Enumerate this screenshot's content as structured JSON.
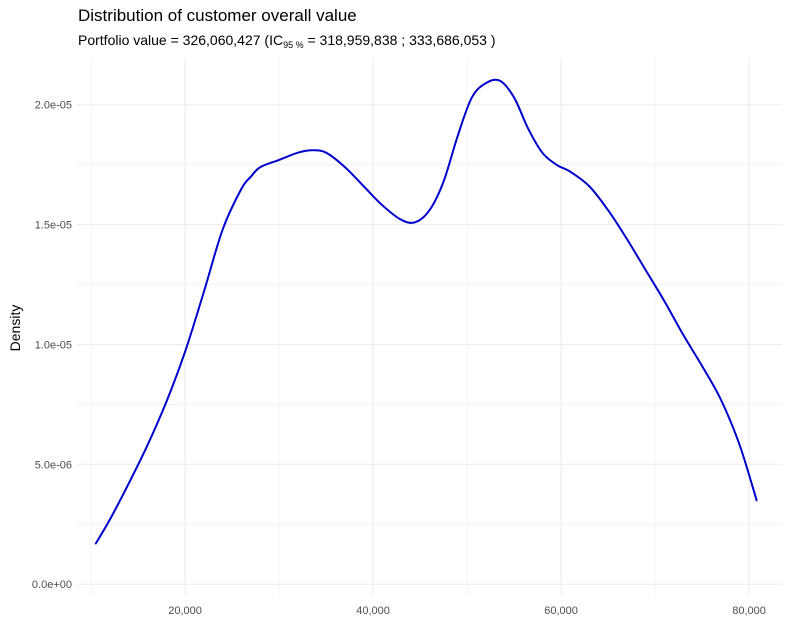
{
  "chart_data": {
    "type": "line",
    "title": "Distribution of customer overall value",
    "subtitle": {
      "prefix": "Portfolio value = 326,060,427 (IC",
      "sub": "95 %",
      "suffix": " =  318,959,838 ; 333,686,053 )"
    },
    "xlabel": "",
    "ylabel": "Density",
    "xlim": [
      8500,
      83500
    ],
    "ylim": [
      -4.5e-07,
      2.195e-05
    ],
    "x_ticks": [
      20000,
      40000,
      60000,
      80000
    ],
    "x_tick_labels": [
      "20,000",
      "40,000",
      "60,000",
      "80,000"
    ],
    "y_ticks": [
      0,
      5e-06,
      1e-05,
      1.5e-05,
      2e-05
    ],
    "y_tick_labels": [
      "0.0e+00",
      "5.0e-06",
      "1.0e-05",
      "1.5e-05",
      "2.0e-05"
    ],
    "grid": true,
    "line_color": "#0000cd",
    "grid_color": "#ebebeb",
    "series": [
      {
        "x": [
          10500,
          12000,
          14000,
          16000,
          18000,
          20000,
          22000,
          24000,
          26000,
          27000,
          28000,
          30000,
          32000,
          33500,
          35000,
          37000,
          39000,
          41000,
          43000,
          44500,
          46000,
          47500,
          49000,
          50500,
          52000,
          53500,
          55000,
          56500,
          58000,
          59500,
          61000,
          63000,
          65000,
          67000,
          69000,
          71000,
          73000,
          75000,
          77000,
          79000,
          80800
        ],
        "y": [
          1.7e-06,
          2.7e-06,
          4.2e-06,
          5.8e-06,
          7.6e-06,
          9.7e-06,
          1.22e-05,
          1.48e-05,
          1.65e-05,
          1.7e-05,
          1.74e-05,
          1.77e-05,
          1.8e-05,
          1.81e-05,
          1.8e-05,
          1.74e-05,
          1.66e-05,
          1.58e-05,
          1.52e-05,
          1.51e-05,
          1.56e-05,
          1.68e-05,
          1.87e-05,
          2.03e-05,
          2.09e-05,
          2.1e-05,
          2.03e-05,
          1.9e-05,
          1.8e-05,
          1.75e-05,
          1.72e-05,
          1.66e-05,
          1.56e-05,
          1.44e-05,
          1.31e-05,
          1.18e-05,
          1.04e-05,
          9.1e-06,
          7.7e-06,
          5.8e-06,
          3.5e-06
        ]
      }
    ]
  }
}
